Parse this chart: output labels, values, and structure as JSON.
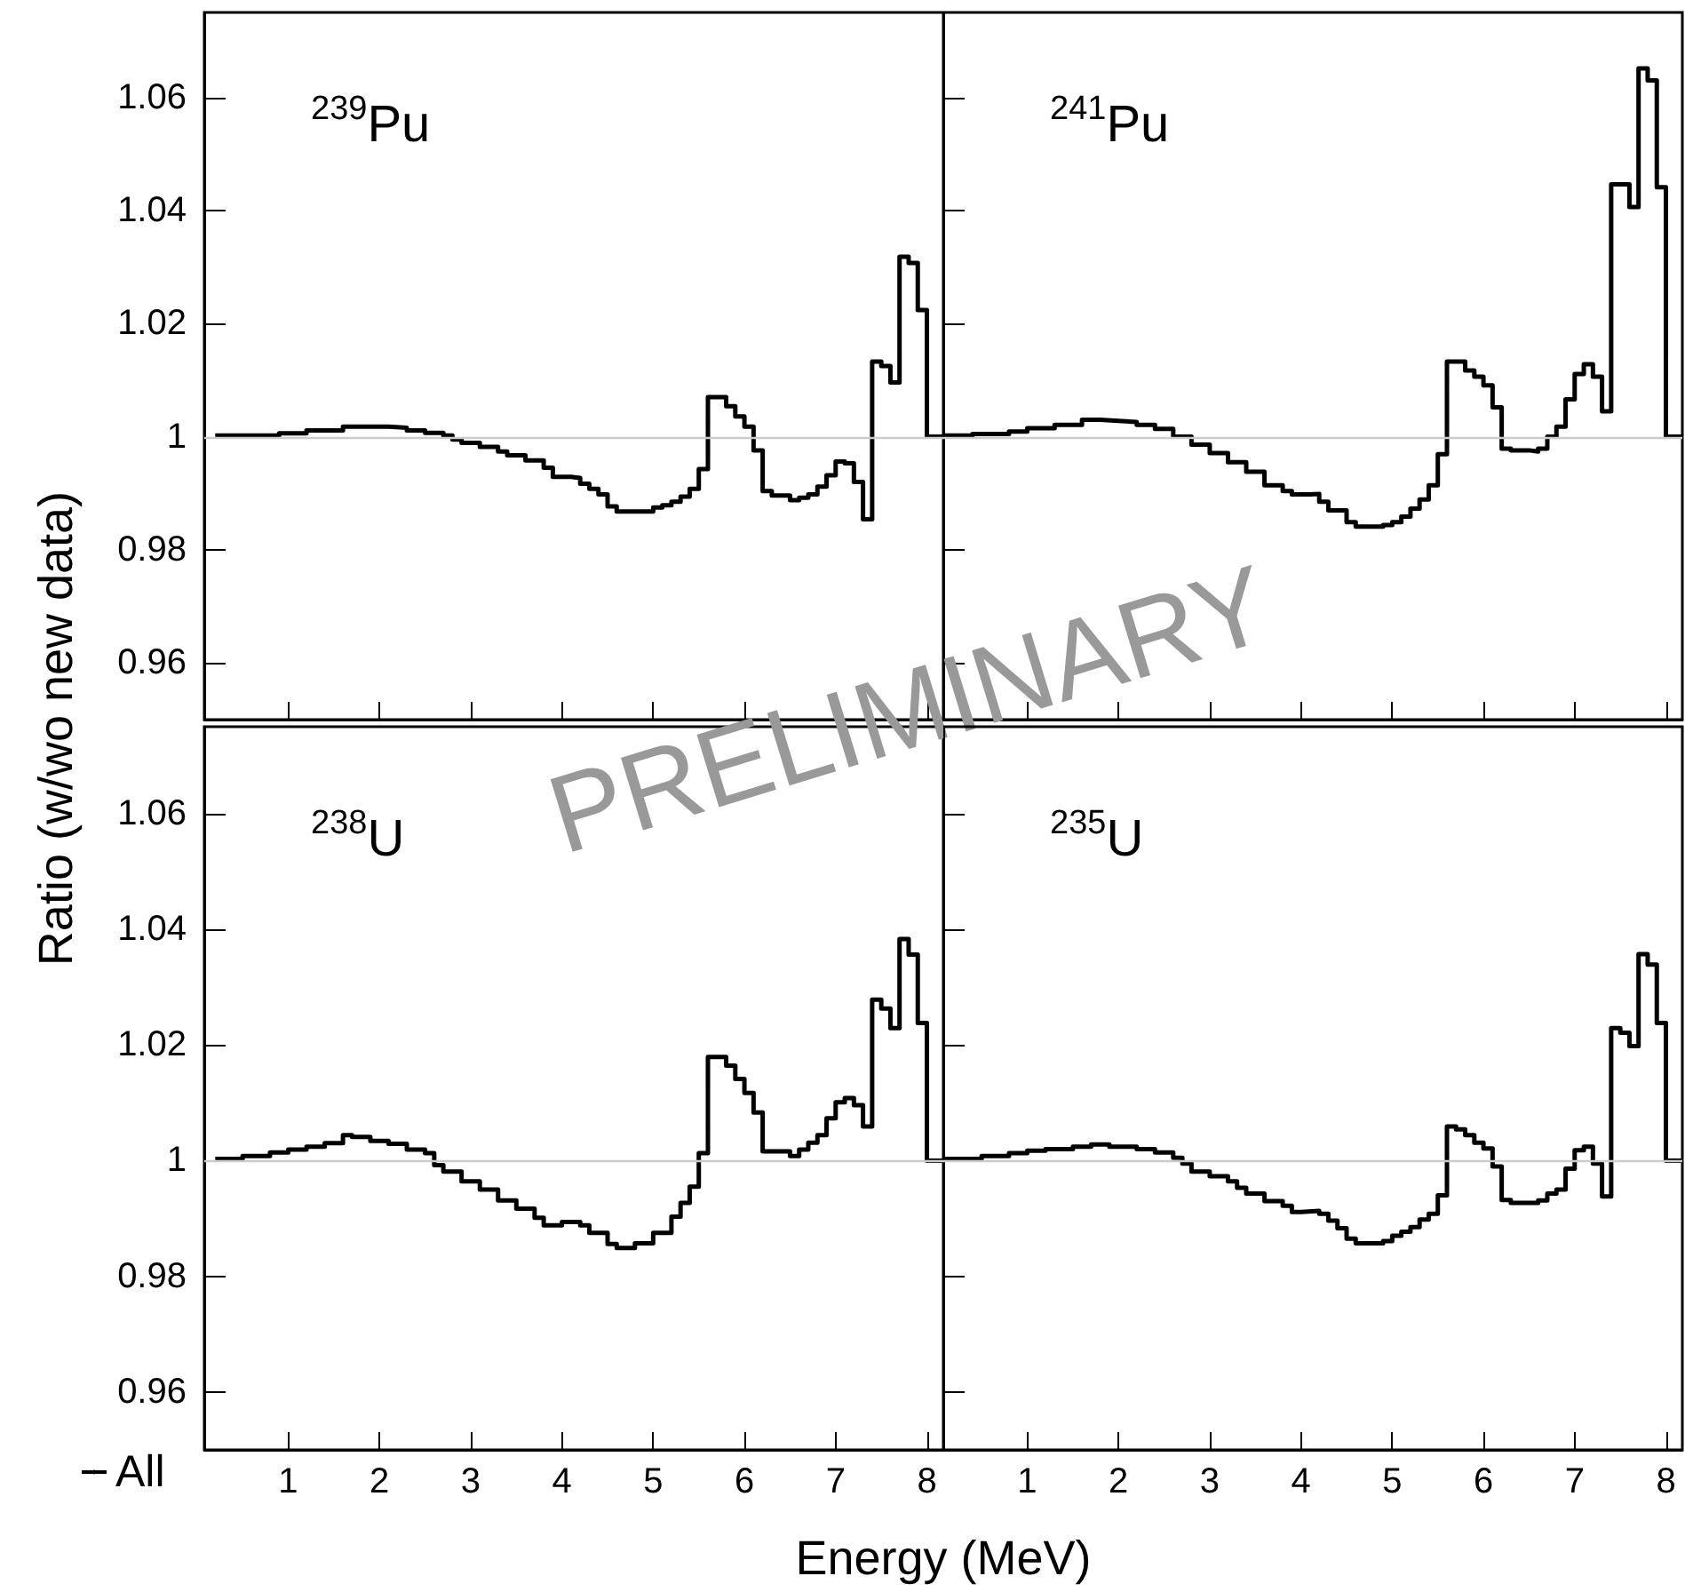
{
  "chart_data": [
    {
      "type": "step",
      "annotations": [
        "$^{239}$Pu"
      ],
      "xlim": [
        0.08,
        8.18
      ],
      "ylim": [
        0.95,
        1.075
      ],
      "xticks": [
        1,
        2,
        3,
        4,
        5,
        6,
        7,
        8
      ],
      "yticks": [
        0.96,
        0.98,
        1,
        1.02,
        1.04,
        1.06
      ],
      "tick_labels": "y",
      "ref_lines": [
        {
          "axis": "y",
          "value": 1,
          "color": "#cccccc"
        }
      ],
      "series": [
        {
          "color": "#000000",
          "x": [
            0.2,
            0.9,
            1.2,
            1.6,
            2.1,
            2.3,
            2.5,
            2.7,
            2.8,
            2.9,
            3.1,
            3.3,
            3.4,
            3.6,
            3.8,
            3.9,
            4.1,
            4.2,
            4.3,
            4.4,
            4.5,
            4.6,
            5.0,
            5.1,
            5.2,
            5.3,
            5.4,
            5.5,
            5.6,
            5.8,
            5.9,
            6.0,
            6.1,
            6.2,
            6.3,
            6.5,
            6.6,
            6.7,
            6.8,
            6.9,
            7.0,
            7.1,
            7.2,
            7.3,
            7.4,
            7.5,
            7.6,
            7.7,
            7.8,
            7.9,
            8.0,
            8.18
          ],
          "values": [
            1.0002,
            1.0006,
            1.0011,
            1.0018,
            1.0016,
            1.0011,
            1.0007,
            1.0002,
            0.9995,
            0.9989,
            0.9982,
            0.9974,
            0.9967,
            0.9958,
            0.9945,
            0.9929,
            0.9927,
            0.9917,
            0.9908,
            0.9898,
            0.9877,
            0.9868,
            0.9875,
            0.9879,
            0.9885,
            0.9894,
            0.9908,
            0.9943,
            1.007,
            1.0054,
            1.0036,
            1.0018,
            0.9976,
            0.9904,
            0.9896,
            0.9888,
            0.9892,
            0.9898,
            0.9912,
            0.9932,
            0.9956,
            0.9953,
            0.992,
            0.9854,
            1.0133,
            1.0125,
            1.0096,
            1.0318,
            1.0307,
            1.0224,
            1.0,
            1.0
          ]
        }
      ]
    },
    {
      "type": "step",
      "annotations": [
        "$^{241}$Pu"
      ],
      "xlim": [
        0.08,
        8.18
      ],
      "ylim": [
        0.95,
        1.075
      ],
      "xticks": [
        1,
        2,
        3,
        4,
        5,
        6,
        7,
        8
      ],
      "yticks": [
        0.96,
        0.98,
        1,
        1.02,
        1.04,
        1.06
      ],
      "tick_labels": false,
      "ref_lines": [
        {
          "axis": "y",
          "value": 1,
          "color": "#cccccc"
        }
      ],
      "series": [
        {
          "color": "#000000",
          "x": [
            0.1,
            0.4,
            0.8,
            1.0,
            1.3,
            1.6,
            1.8,
            2.0,
            2.2,
            2.4,
            2.6,
            2.8,
            3.0,
            3.2,
            3.4,
            3.6,
            3.8,
            3.9,
            4.1,
            4.2,
            4.3,
            4.5,
            4.6,
            4.9,
            5.0,
            5.1,
            5.2,
            5.3,
            5.4,
            5.5,
            5.6,
            5.8,
            5.9,
            6.0,
            6.1,
            6.2,
            6.3,
            6.5,
            6.6,
            6.7,
            6.8,
            6.9,
            7.0,
            7.1,
            7.2,
            7.3,
            7.4,
            7.6,
            7.7,
            7.8,
            7.9,
            8.0,
            8.18
          ],
          "values": [
            1.0002,
            1.0005,
            1.0009,
            1.0015,
            1.0021,
            1.003,
            1.0028,
            1.0026,
            1.0021,
            1.0014,
            1.0,
            0.9986,
            0.9971,
            0.9955,
            0.9938,
            0.9914,
            0.9904,
            0.9898,
            0.9899,
            0.9885,
            0.987,
            0.9849,
            0.9841,
            0.9844,
            0.9849,
            0.9859,
            0.9873,
            0.9889,
            0.9914,
            0.9969,
            1.0133,
            1.0117,
            1.0106,
            1.0091,
            1.0052,
            0.9979,
            0.9976,
            0.9974,
            0.9979,
            1.0,
            1.0018,
            1.0066,
            1.0111,
            1.0128,
            1.0106,
            1.0045,
            1.0446,
            1.0406,
            1.0651,
            1.063,
            1.0441,
            1.0,
            1.0
          ]
        }
      ]
    },
    {
      "type": "step",
      "annotations": [
        "$^{238}$U",
        "PRELIMINARY"
      ],
      "xlabel": "Energy (MeV)",
      "ylabel": "Ratio (w/wo new data)",
      "legend": "bottom left",
      "xlim": [
        0.08,
        8.18
      ],
      "ylim": [
        0.95,
        1.075
      ],
      "xticks": [
        1,
        2,
        3,
        4,
        5,
        6,
        7,
        8
      ],
      "yticks": [
        0.96,
        0.98,
        1,
        1.02,
        1.04,
        1.06
      ],
      "ref_lines": [
        {
          "axis": "y",
          "value": 1,
          "color": "#cccccc"
        }
      ],
      "series": [
        {
          "name": "All",
          "color": "#000000",
          "x": [
            0.2,
            0.5,
            0.8,
            1.0,
            1.2,
            1.4,
            1.6,
            1.7,
            1.9,
            2.1,
            2.3,
            2.5,
            2.6,
            2.7,
            2.9,
            3.1,
            3.3,
            3.5,
            3.7,
            3.8,
            4.0,
            4.2,
            4.3,
            4.5,
            4.6,
            4.8,
            5.0,
            5.2,
            5.3,
            5.4,
            5.5,
            5.6,
            5.8,
            5.9,
            6.0,
            6.1,
            6.2,
            6.5,
            6.6,
            6.7,
            6.8,
            6.9,
            7.0,
            7.1,
            7.2,
            7.3,
            7.4,
            7.5,
            7.6,
            7.7,
            7.8,
            7.9,
            8.0,
            8.18
          ],
          "values": [
            1.0003,
            1.0008,
            1.0014,
            1.0019,
            1.0024,
            1.003,
            1.0044,
            1.0041,
            1.0034,
            1.0029,
            1.0019,
            1.0013,
            0.9992,
            0.9981,
            0.9964,
            0.995,
            0.9931,
            0.9917,
            0.9901,
            0.9888,
            0.9894,
            0.9888,
            0.9875,
            0.9856,
            0.9849,
            0.9857,
            0.9875,
            0.9903,
            0.9927,
            0.9955,
            1.0013,
            1.0179,
            1.0164,
            1.0141,
            1.0117,
            1.0083,
            1.0016,
            1.0008,
            1.0019,
            1.0031,
            1.0044,
            1.0073,
            1.0101,
            1.0108,
            1.0096,
            1.0059,
            1.0278,
            1.0263,
            1.0229,
            1.0383,
            1.0356,
            1.0238,
            1.0,
            1.0
          ]
        }
      ]
    },
    {
      "type": "step",
      "annotations": [
        "$^{235}$U"
      ],
      "xlim": [
        0.08,
        8.18
      ],
      "ylim": [
        0.95,
        1.075
      ],
      "xticks": [
        1,
        2,
        3,
        4,
        5,
        6,
        7,
        8
      ],
      "yticks": [
        0.96,
        0.98,
        1,
        1.02,
        1.04,
        1.06
      ],
      "tick_labels": "x",
      "ref_lines": [
        {
          "axis": "y",
          "value": 1,
          "color": "#cccccc"
        }
      ],
      "series": [
        {
          "color": "#000000",
          "x": [
            0.1,
            0.5,
            0.8,
            1.0,
            1.2,
            1.5,
            1.7,
            1.9,
            2.2,
            2.4,
            2.6,
            2.7,
            2.8,
            3.0,
            3.2,
            3.3,
            3.4,
            3.6,
            3.8,
            3.9,
            4.0,
            4.2,
            4.3,
            4.4,
            4.5,
            4.6,
            4.9,
            5.0,
            5.1,
            5.2,
            5.3,
            5.4,
            5.5,
            5.6,
            5.7,
            5.8,
            5.9,
            6.0,
            6.1,
            6.2,
            6.3,
            6.6,
            6.7,
            6.8,
            6.9,
            7.0,
            7.1,
            7.2,
            7.3,
            7.4,
            7.5,
            7.6,
            7.7,
            7.8,
            7.9,
            8.0,
            8.18
          ],
          "values": [
            1.0003,
            1.0008,
            1.0013,
            1.0017,
            1.002,
            1.0024,
            1.0028,
            1.0024,
            1.002,
            1.0014,
            1.0005,
            0.9995,
            0.9981,
            0.9973,
            0.9964,
            0.9953,
            0.9943,
            0.993,
            0.9922,
            0.9911,
            0.9913,
            0.9908,
            0.9896,
            0.9883,
            0.9865,
            0.9857,
            0.9861,
            0.987,
            0.9877,
            0.9885,
            0.9898,
            0.9908,
            0.994,
            1.0059,
            1.0054,
            1.0044,
            1.0031,
            1.0021,
            0.999,
            0.9932,
            0.9927,
            0.9931,
            0.9943,
            0.995,
            0.9986,
            1.0018,
            1.0024,
            0.9995,
            0.9938,
            1.0229,
            1.0221,
            1.0198,
            1.0357,
            1.0339,
            1.0238,
            1.0,
            1.0
          ]
        }
      ]
    }
  ]
}
